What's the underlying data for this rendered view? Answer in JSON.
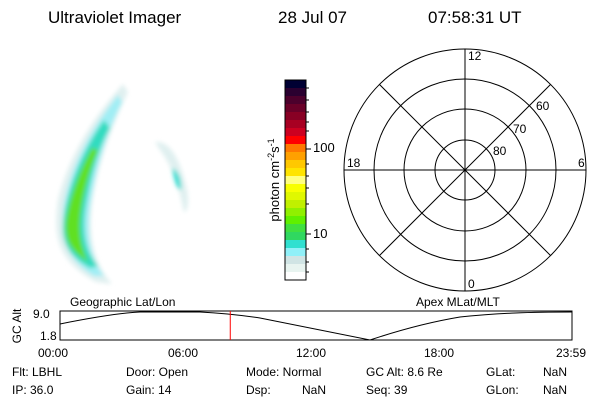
{
  "header": {
    "title": "Ultraviolet Imager",
    "date": "28 Jul 07",
    "time": "07:58:31 UT"
  },
  "colorbar": {
    "label": "photon cm",
    "label_sup1": "-2",
    "label_mid": "s",
    "label_sup2": "-1",
    "ticks": [
      "100",
      "10"
    ],
    "colors": [
      "#000033",
      "#2a0030",
      "#4c002c",
      "#6a0028",
      "#880024",
      "#a80022",
      "#cc0020",
      "#ff0000",
      "#ff7800",
      "#ffa000",
      "#ffc800",
      "#ffe400",
      "#ffff80",
      "#f8ff00",
      "#e0f800",
      "#c0f000",
      "#90f000",
      "#60f000",
      "#40e040",
      "#30d860",
      "#30e0d0",
      "#90f0f8",
      "#d0e4e4",
      "#e8f4f0",
      "#ffffff"
    ]
  },
  "polar": {
    "mlt_labels": {
      "top": "12",
      "left": "18",
      "right": "6",
      "bottom": "0"
    },
    "lat_labels": [
      "60",
      "70",
      "80"
    ]
  },
  "timeline": {
    "left_label": "Geographic Lat/Lon",
    "right_label": "Apex MLat/MLT",
    "y_axis_label": "GC Alt",
    "y_ticks": [
      "9.0",
      "1.8"
    ],
    "x_ticks": [
      "00:00",
      "06:00",
      "12:00",
      "18:00",
      "23:59"
    ],
    "current_time": "07:58:31",
    "marker_color": "#ff0000"
  },
  "status": {
    "flt": "Flt: LBHL",
    "ip": "IP: 36.0",
    "door": "Door: Open",
    "gain": "Gain: 14",
    "mode": "Mode: Normal",
    "dsp_label": "Dsp:",
    "dsp_value": "NaN",
    "gc_alt": "GC Alt: 8.6 Re",
    "seq": "Seq: 39",
    "glat_label": "GLat:",
    "glat_value": "NaN",
    "glon_label": "GLon:",
    "glon_value": "NaN"
  }
}
